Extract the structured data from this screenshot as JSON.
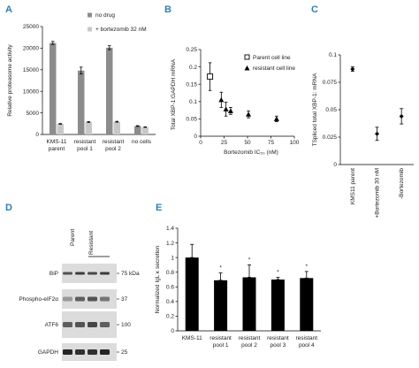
{
  "colors": {
    "letter": "#2f7fb0",
    "dark_bar": "#8c8c8c",
    "light_bar": "#c8c8c8",
    "black_bar": "#000000"
  },
  "panels": {
    "A": {
      "letter": "A"
    },
    "B": {
      "letter": "B"
    },
    "C": {
      "letter": "C"
    },
    "D": {
      "letter": "D"
    },
    "E": {
      "letter": "E"
    }
  },
  "chart_data": [
    {
      "id": "A",
      "type": "bar",
      "ylabel": "Relative proteasome activity",
      "ylim": [
        0,
        25000
      ],
      "yticks": [
        0,
        5000,
        10000,
        15000,
        20000,
        25000
      ],
      "categories": [
        [
          "KMS-11",
          "parent"
        ],
        [
          "resistant",
          "pool 1"
        ],
        [
          "resistant",
          "pool 2"
        ],
        [
          "no cells"
        ]
      ],
      "series": [
        {
          "name": "no drug",
          "color": "#8c8c8c",
          "values": [
            21200,
            14800,
            20100,
            1950
          ],
          "errors": [
            350,
            800,
            450,
            80
          ]
        },
        {
          "name": "+ bortezomib 32 nM",
          "color": "#c8c8c8",
          "values": [
            2450,
            2900,
            2950,
            1700
          ],
          "errors": [
            80,
            100,
            100,
            60
          ]
        }
      ],
      "legend": "top-right"
    },
    {
      "id": "B",
      "type": "scatter",
      "xlabel": "Bortezomib IC₅₀ (nM)",
      "ylabel": "Total XBP-1:GAPDH mRNA",
      "xlim": [
        0,
        100
      ],
      "ylim": [
        0,
        0.25
      ],
      "xticks": [
        0,
        25,
        50,
        75,
        100
      ],
      "yticks": [
        "0",
        "0.05",
        "0.1",
        "0.15",
        "0.2",
        "0.25"
      ],
      "series": [
        {
          "name": "Parent cell line",
          "marker": "open-square",
          "points": [
            [
              10,
              0.172
            ]
          ],
          "errors": [
            0.04
          ]
        },
        {
          "name": "resistant cell line",
          "marker": "filled-triangle",
          "points": [
            [
              22,
              0.105
            ],
            [
              27,
              0.078
            ],
            [
              32,
              0.073
            ],
            [
              51,
              0.063
            ],
            [
              81,
              0.05
            ]
          ],
          "errors": [
            0.022,
            0.02,
            0.01,
            0.01,
            0.008
          ]
        }
      ],
      "legend": "top-right"
    },
    {
      "id": "C",
      "type": "scatter",
      "ylabel": "TSpliced total XBP-1: mRNA",
      "ylim": [
        0,
        0.1
      ],
      "yticks": [
        "0",
        "0.025",
        "0.05",
        "0.075",
        "0.1"
      ],
      "categories": [
        "KMS11 parent",
        "+Bortezomib 30 nM",
        "-Bortezomib"
      ],
      "values": [
        0.087,
        0.028,
        0.044
      ],
      "errors": [
        0.002,
        0.006,
        0.007
      ]
    },
    {
      "id": "E",
      "type": "bar",
      "ylabel": "Normalized IgL κ secretion",
      "ylim": [
        0,
        1.4
      ],
      "yticks": [
        "0",
        "0.2",
        "0.4",
        "0.6",
        "0.8",
        "1",
        "1.2",
        "1.4"
      ],
      "categories": [
        [
          "KMS-11"
        ],
        [
          "resistant",
          "pool 1"
        ],
        [
          "resistant",
          "pool 2"
        ],
        [
          "resistant",
          "pool 3"
        ],
        [
          "resistant",
          "pool 4"
        ]
      ],
      "values": [
        1.0,
        0.69,
        0.73,
        0.7,
        0.72
      ],
      "errors": [
        0.18,
        0.1,
        0.17,
        0.03,
        0.09
      ],
      "significance": [
        "",
        "*",
        "*",
        "*",
        "*"
      ]
    }
  ],
  "blot": {
    "lanes": [
      "Parent",
      "Resistant"
    ],
    "rows": [
      {
        "name": "BiP",
        "marker": "75 kDa"
      },
      {
        "name": "Phospho-eIF2α",
        "marker": "37"
      },
      {
        "name": "ATF6",
        "marker": "100"
      },
      {
        "name": "GAPDH",
        "marker": "25"
      }
    ]
  }
}
